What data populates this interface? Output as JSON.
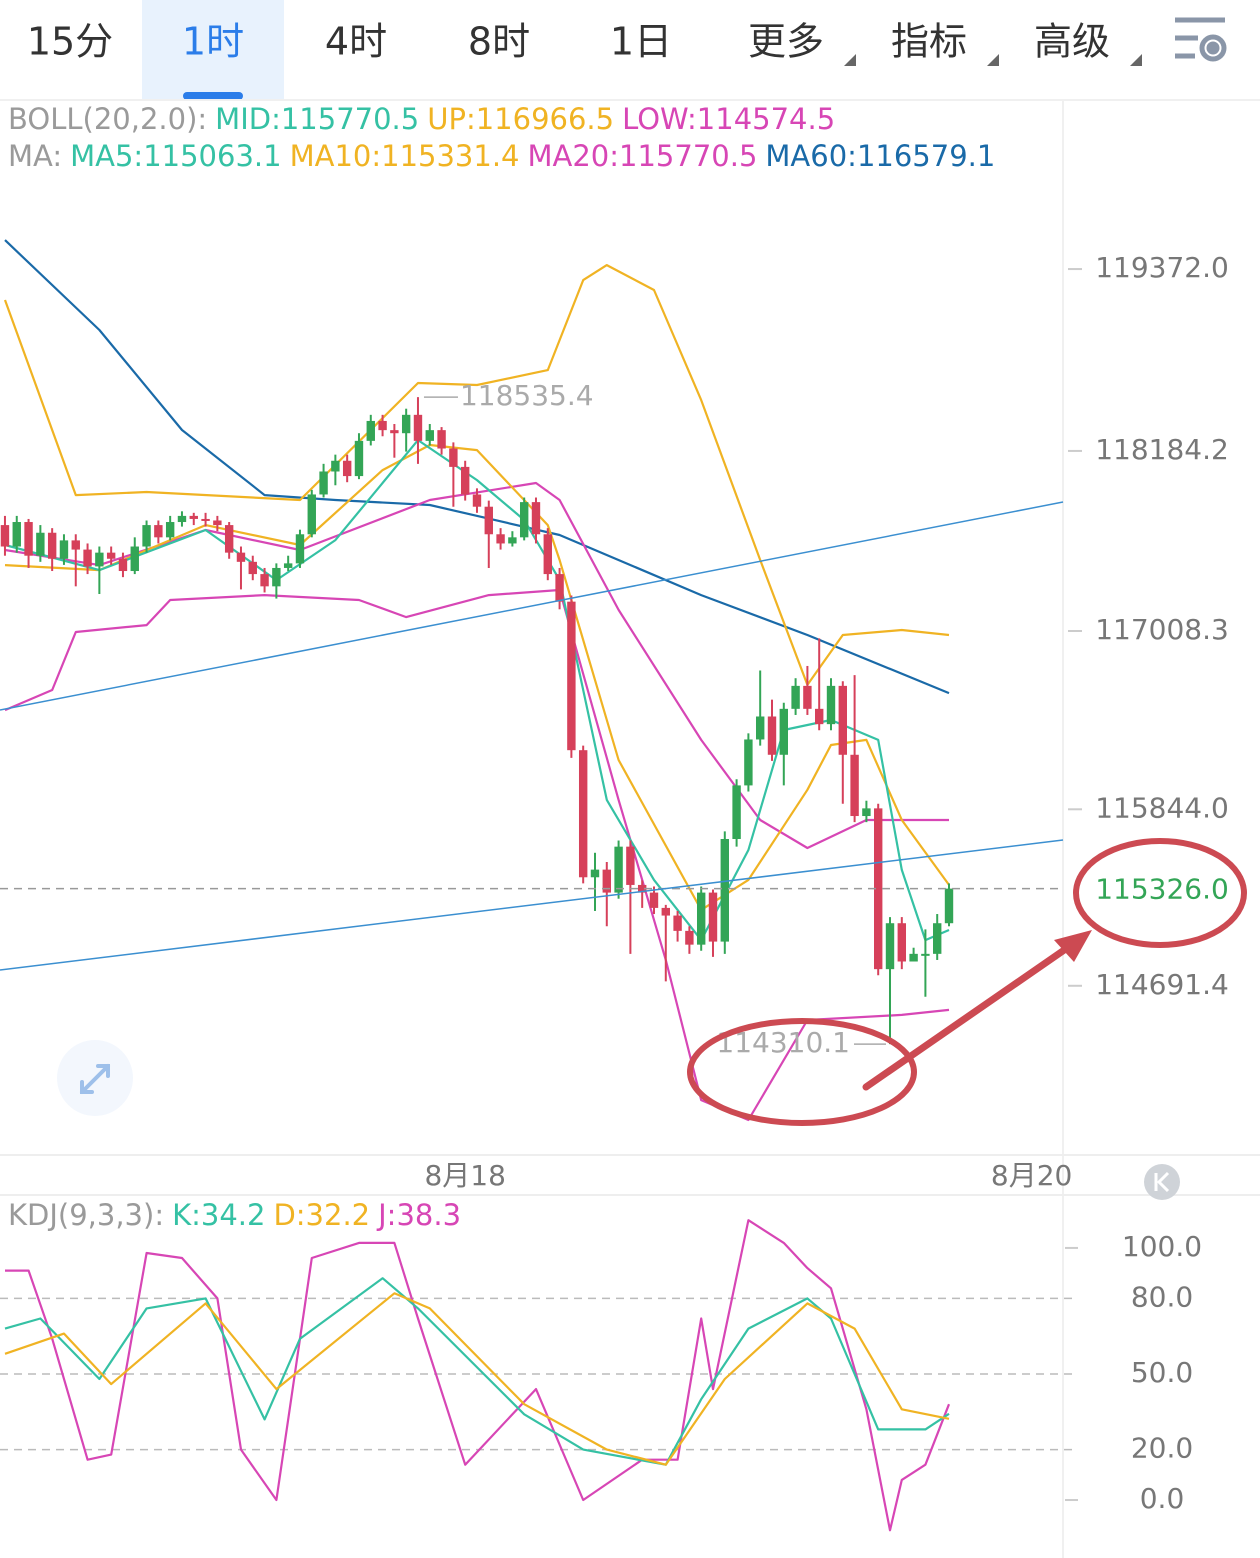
{
  "tabs": [
    "15分",
    "1时",
    "4时",
    "8时",
    "1日",
    "更多",
    "指标",
    "高级"
  ],
  "selected_tab": 1,
  "chart_data": [
    {
      "type": "candlestick",
      "legend": [
        [
          {
            "text": "BOLL(20,2.0):",
            "color": "#9a9a9a"
          },
          {
            "text": "MID:115770.5",
            "color": "#35c1a4"
          },
          {
            "text": "UP:116966.5",
            "color": "#f0b323"
          },
          {
            "text": "LOW:114574.5",
            "color": "#d746b5"
          }
        ],
        [
          {
            "text": "MA:",
            "color": "#9a9a9a"
          },
          {
            "text": "MA5:115063.1",
            "color": "#35c1a4"
          },
          {
            "text": "MA10:115331.4",
            "color": "#f0b323"
          },
          {
            "text": "MA20:115770.5",
            "color": "#d746b5"
          },
          {
            "text": "MA60:116579.1",
            "color": "#1a6aa8"
          }
        ]
      ],
      "up_color": "#33a556",
      "down_color": "#d6405a",
      "open": [
        117700,
        117560,
        117720,
        117500,
        117650,
        117480,
        117600,
        117540,
        117430,
        117520,
        117480,
        117400,
        117560,
        117700,
        117620,
        117720,
        117760,
        117740,
        117730,
        117700,
        117520,
        117460,
        117380,
        117300,
        117420,
        117450,
        117640,
        117900,
        118050,
        118120,
        118020,
        118250,
        118380,
        118320,
        118300,
        118420,
        118250,
        118320,
        118200,
        118080,
        117900,
        117820,
        117640,
        117580,
        117620,
        117850,
        117640,
        117380,
        117200,
        116230,
        115400,
        115450,
        115300,
        115600,
        115350,
        115300,
        115200,
        115150,
        115050,
        114960,
        115300,
        114980,
        115650,
        116000,
        116300,
        116450,
        116200,
        116500,
        116650,
        116500,
        116400,
        116650,
        116200,
        115800,
        115850,
        114800,
        115100,
        114850,
        114900,
        114900,
        115100
      ],
      "high": [
        117760,
        117760,
        117740,
        117700,
        117680,
        117640,
        117640,
        117580,
        117560,
        117560,
        117520,
        117620,
        117730,
        117730,
        117760,
        117790,
        117780,
        117780,
        117760,
        117720,
        117560,
        117500,
        117420,
        117450,
        117500,
        117670,
        117930,
        118100,
        118160,
        118160,
        118300,
        118420,
        118420,
        118360,
        118460,
        118535.4,
        118360,
        118340,
        118240,
        118120,
        117940,
        117860,
        117680,
        117660,
        117880,
        117880,
        117680,
        117420,
        117240,
        116260,
        115560,
        115500,
        115640,
        115640,
        115380,
        115340,
        115220,
        115180,
        115080,
        115340,
        115320,
        115700,
        116040,
        116340,
        116750,
        116560,
        116540,
        116700,
        116780,
        116960,
        116700,
        116680,
        116720,
        115900,
        115880,
        115140,
        115140,
        114940,
        115060,
        115160,
        115360
      ],
      "low": [
        117500,
        117520,
        117420,
        117460,
        117400,
        117440,
        117300,
        117380,
        117250,
        117440,
        117360,
        117380,
        117520,
        117580,
        117600,
        117690,
        117700,
        117690,
        117660,
        117480,
        117280,
        117340,
        117260,
        117220,
        117400,
        117420,
        117620,
        117880,
        117960,
        117980,
        118000,
        118220,
        118280,
        118140,
        118180,
        118100,
        118220,
        118160,
        117820,
        117860,
        117780,
        117420,
        117540,
        117560,
        117600,
        117580,
        117340,
        117150,
        116180,
        115360,
        115180,
        115080,
        115260,
        114900,
        115200,
        115160,
        114720,
        114980,
        114900,
        114920,
        114880,
        114900,
        115600,
        115960,
        116260,
        116160,
        116000,
        116460,
        116460,
        116360,
        116360,
        115880,
        115760,
        115760,
        114760,
        114310.1,
        114800,
        114860,
        114620,
        114860,
        115080
      ],
      "close": [
        117560,
        117720,
        117500,
        117650,
        117480,
        117600,
        117540,
        117430,
        117520,
        117480,
        117400,
        117560,
        117700,
        117620,
        117720,
        117760,
        117740,
        117730,
        117700,
        117520,
        117460,
        117380,
        117300,
        117420,
        117450,
        117640,
        117900,
        118050,
        118120,
        118020,
        118250,
        118380,
        118320,
        118300,
        118420,
        118250,
        118320,
        118200,
        118080,
        117900,
        117820,
        117640,
        117580,
        117620,
        117850,
        117640,
        117380,
        117200,
        116230,
        115400,
        115450,
        115300,
        115600,
        115350,
        115300,
        115200,
        115150,
        115050,
        114960,
        115300,
        114980,
        115650,
        116000,
        116300,
        116450,
        116200,
        116500,
        116650,
        116500,
        116400,
        116650,
        116200,
        115800,
        115850,
        114800,
        115100,
        114850,
        114900,
        114900,
        115100,
        115326
      ],
      "lines": [
        {
          "color": "#1a6aa8",
          "x": [
            0,
            8,
            15,
            22,
            28,
            36,
            47,
            59,
            68,
            80
          ],
          "values": [
            119561,
            118974,
            118321,
            117896,
            117864,
            117831,
            117635,
            117243,
            116982,
            116603
          ]
        },
        {
          "color": "#f0b323",
          "x": [
            0,
            6,
            12,
            25,
            35,
            40,
            46,
            49,
            51,
            55,
            59,
            64,
            68,
            71,
            76,
            80
          ],
          "values": [
            119170,
            117896,
            117916,
            117864,
            118628,
            118615,
            118712,
            119300,
            119398,
            119235,
            118516,
            117472,
            116656,
            116982,
            117015,
            116982
          ]
        },
        {
          "color": "#d746b5",
          "x": [
            0,
            4,
            6,
            12,
            14,
            22,
            30,
            34,
            41,
            47,
            52,
            56,
            59,
            63,
            68,
            76,
            80
          ],
          "values": [
            116492,
            116623,
            117002,
            117047,
            117211,
            117243,
            117211,
            117099,
            117243,
            117276,
            115905,
            114860,
            113945,
            113815,
            114468,
            114501,
            114534
          ]
        },
        {
          "color": "#d746b5",
          "x": [
            0,
            8,
            17,
            25,
            36,
            45,
            47,
            52,
            59,
            64,
            68,
            73,
            80
          ],
          "values": [
            117537,
            117439,
            117668,
            117537,
            117864,
            117975,
            117864,
            117146,
            116297,
            115774,
            115591,
            115774,
            115774
          ]
        },
        {
          "color": "#f0b323",
          "x": [
            0,
            8,
            17,
            25,
            32,
            36,
            40,
            46,
            47,
            52,
            59,
            63,
            68,
            70,
            73,
            76,
            80
          ],
          "values": [
            117439,
            117406,
            117700,
            117570,
            118059,
            118223,
            118190,
            117700,
            117472,
            116166,
            115187,
            115383,
            115971,
            116264,
            116297,
            115774,
            115350
          ]
        },
        {
          "color": "#35c1a4",
          "x": [
            0,
            8,
            17,
            23,
            28,
            35,
            40,
            44,
            47,
            51,
            55,
            59,
            63,
            66,
            70,
            74,
            76,
            78,
            80
          ],
          "values": [
            117570,
            117406,
            117668,
            117341,
            117602,
            118255,
            117994,
            117733,
            117341,
            115905,
            115383,
            114990,
            115578,
            116362,
            116427,
            116297,
            115448,
            114990,
            115056
          ]
        }
      ],
      "xlim": [
        -0.42,
        89.66
      ],
      "ylim": [
        113619,
        120476
      ],
      "yticks": [
        {
          "value": 119372,
          "label": "119372.0"
        },
        {
          "value": 118184.2,
          "label": "118184.2"
        },
        {
          "value": 117008.3,
          "label": "117008.3"
        },
        {
          "value": 115844,
          "label": "115844.0"
        },
        {
          "value": 114691.4,
          "label": "114691.4"
        }
      ],
      "xticks": [
        {
          "value": 39,
          "label": "8月18"
        },
        {
          "value": 87,
          "label": "8月20"
        }
      ],
      "last_label": "115326.0"
    },
    {
      "type": "line",
      "legend": [
        [
          {
            "text": "KDJ(9,3,3):",
            "color": "#9a9a9a"
          },
          {
            "text": "K:34.2",
            "color": "#35c1a4"
          },
          {
            "text": "D:32.2",
            "color": "#f0b323"
          },
          {
            "text": "J:38.3",
            "color": "#d746b5"
          }
        ]
      ],
      "series": [
        {
          "color": "#d746b5",
          "x": [
            0,
            2,
            4,
            7,
            9,
            12,
            15,
            18,
            20,
            23,
            26,
            30,
            33,
            35,
            39,
            45,
            49,
            54,
            57,
            59,
            60,
            63,
            66,
            68,
            70,
            73,
            75,
            76,
            78,
            80
          ],
          "values": [
            91,
            91,
            64,
            16,
            18,
            98,
            96,
            80,
            20,
            0,
            96,
            102,
            102,
            72,
            14,
            44,
            0,
            16,
            16,
            72,
            44,
            111,
            102,
            92,
            84,
            36,
            -12,
            8,
            14,
            38
          ]
        },
        {
          "color": "#35c1a4",
          "x": [
            0,
            3,
            8,
            12,
            17,
            22,
            25,
            32,
            35,
            44,
            49,
            56,
            59,
            63,
            68,
            70,
            74,
            78,
            80
          ],
          "values": [
            68,
            72,
            48,
            76,
            80,
            32,
            64,
            88,
            76,
            34,
            20,
            14,
            40,
            68,
            80,
            72,
            28,
            28,
            34.2
          ]
        },
        {
          "color": "#f0b323",
          "x": [
            0,
            5,
            9,
            17,
            23,
            33,
            36,
            44,
            51,
            56,
            61,
            68,
            72,
            76,
            80
          ],
          "values": [
            58,
            66,
            46,
            78,
            44,
            82,
            76,
            38,
            20,
            14,
            48,
            78,
            68,
            36,
            32.2
          ]
        }
      ],
      "xlim": [
        -0.42,
        89.66
      ],
      "ylim": [
        -23,
        121
      ],
      "yticks": [
        {
          "value": 100,
          "label": "100.0"
        },
        {
          "value": 80,
          "label": "80.0"
        },
        {
          "value": 50,
          "label": "50.0"
        },
        {
          "value": 20,
          "label": "20.0"
        },
        {
          "value": 0,
          "label": "0.0"
        }
      ],
      "grid": "dashed"
    }
  ]
}
